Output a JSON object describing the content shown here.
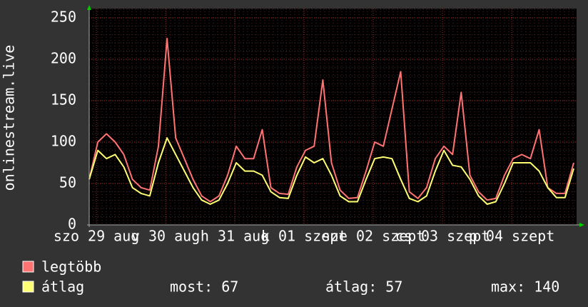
{
  "chart_data": {
    "type": "line",
    "ylabel": "onlinestream.live",
    "x": [
      0,
      3,
      6,
      9,
      12,
      15,
      18,
      21,
      24,
      27,
      30,
      33,
      36,
      39,
      42,
      45,
      48,
      51,
      54,
      57,
      60,
      63,
      66,
      69,
      72,
      75,
      78,
      81,
      84,
      87,
      90,
      93,
      96,
      99,
      102,
      105,
      108,
      111,
      114,
      117,
      120,
      123,
      126,
      129,
      132,
      135,
      138,
      141,
      144,
      147,
      150,
      153,
      156,
      159,
      162,
      165,
      168
    ],
    "series": [
      {
        "name": "legtöbb",
        "color": "#ff7373",
        "values": [
          55,
          100,
          110,
          100,
          85,
          55,
          45,
          42,
          95,
          225,
          105,
          80,
          55,
          35,
          28,
          35,
          60,
          95,
          80,
          80,
          115,
          45,
          38,
          37,
          70,
          90,
          95,
          175,
          75,
          42,
          32,
          33,
          65,
          100,
          95,
          140,
          185,
          40,
          32,
          45,
          80,
          95,
          85,
          160,
          60,
          40,
          30,
          32,
          60,
          80,
          85,
          80,
          115,
          45,
          38,
          38,
          75
        ]
      },
      {
        "name": "átlag",
        "color": "#ffff73",
        "values": [
          55,
          90,
          80,
          85,
          70,
          45,
          38,
          35,
          75,
          105,
          85,
          65,
          45,
          30,
          25,
          30,
          50,
          75,
          65,
          65,
          60,
          40,
          33,
          32,
          60,
          82,
          75,
          80,
          60,
          35,
          28,
          28,
          55,
          80,
          82,
          80,
          55,
          32,
          28,
          35,
          65,
          90,
          72,
          70,
          55,
          35,
          25,
          28,
          50,
          75,
          75,
          75,
          65,
          45,
          33,
          33,
          68
        ]
      }
    ],
    "stats": [
      "most: 67",
      "átlag: 57",
      "max: 140"
    ],
    "xlim": [
      0,
      169
    ],
    "xticks": [
      {
        "value": 2.5,
        "label": "szo 29 aug"
      },
      {
        "value": 26.5,
        "label": "v 30 aug"
      },
      {
        "value": 50.5,
        "label": "h 31 aug"
      },
      {
        "value": 74.5,
        "label": "k 01 szept"
      },
      {
        "value": 98.5,
        "label": "sze 02 szept"
      },
      {
        "value": 122.5,
        "label": "cs 03 szept"
      },
      {
        "value": 146.5,
        "label": "p 04 szept"
      }
    ],
    "ylim": [
      0,
      250
    ],
    "yticks": [
      0,
      50,
      100,
      150,
      200,
      250
    ],
    "grid": true
  }
}
